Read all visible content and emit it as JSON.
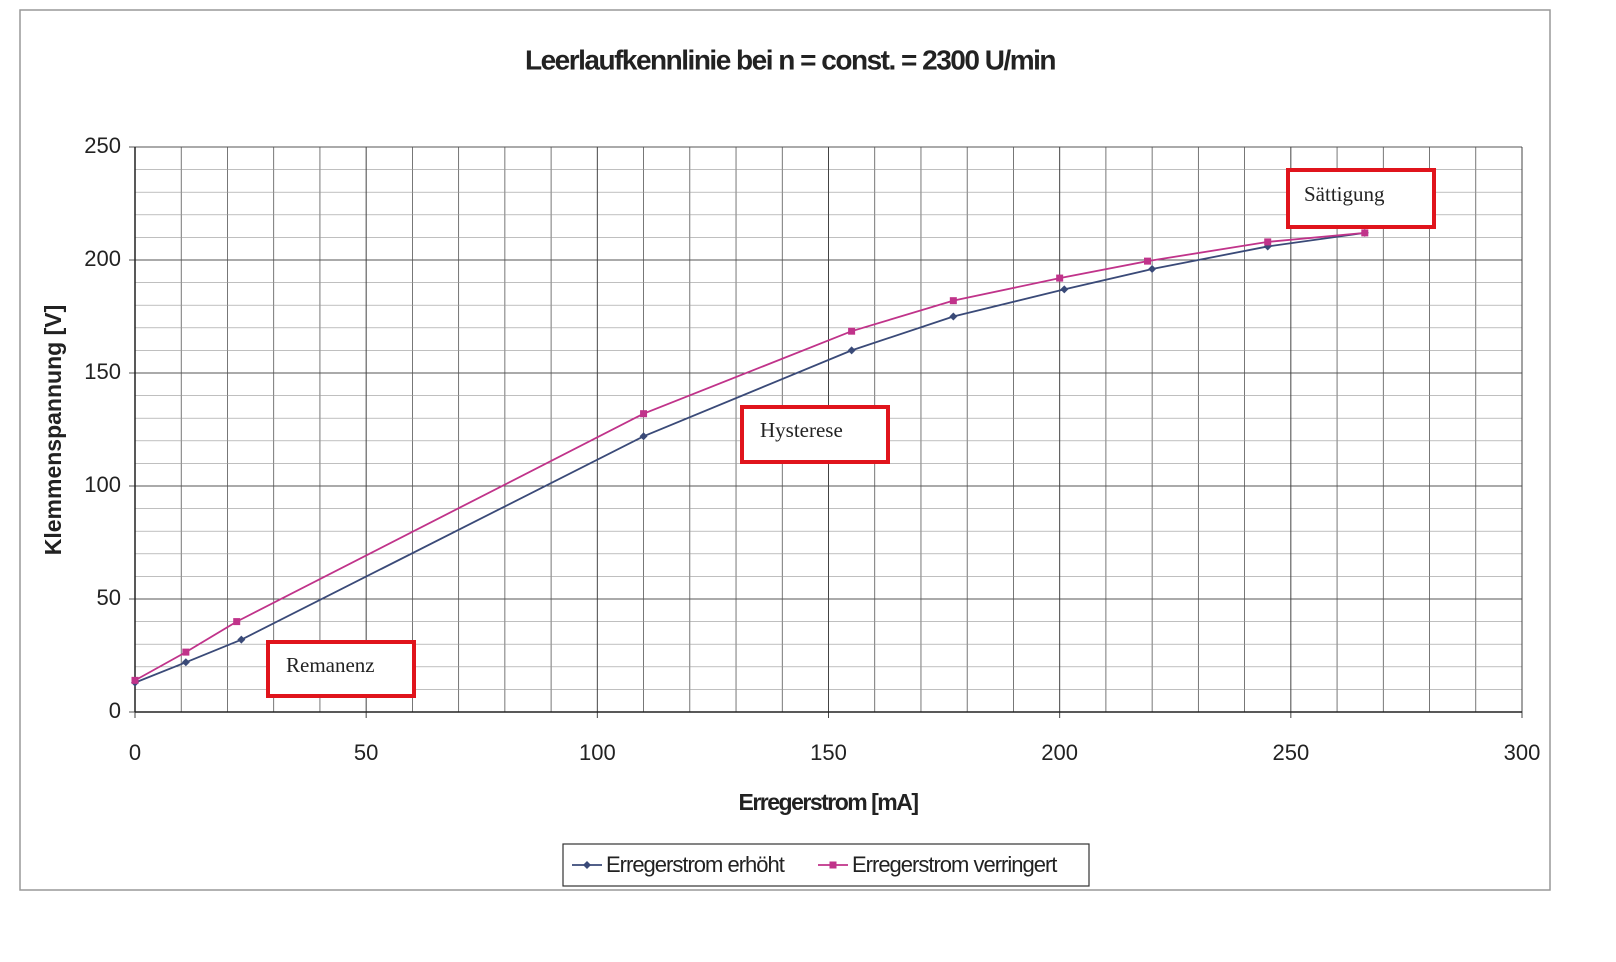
{
  "chart_data": {
    "type": "line",
    "title": "Leerlaufkennlinie bei n = const. = 2300 U/min",
    "xlabel": "Erregerstrom [mA]",
    "ylabel": "Klemmenspannung [V]",
    "series": [
      {
        "name": "Erregerstrom erhöht",
        "color": "#3a4a78",
        "marker": "diamond",
        "x": [
          0,
          11,
          23,
          110,
          155,
          177,
          201,
          220,
          245,
          266
        ],
        "values": [
          13,
          22,
          32,
          122,
          160,
          175,
          187,
          196,
          206,
          212
        ]
      },
      {
        "name": "Erregerstrom verringert",
        "color": "#c0338a",
        "marker": "square",
        "x": [
          0,
          11,
          22,
          110,
          155,
          177,
          200,
          219,
          245,
          266
        ],
        "values": [
          14,
          26.5,
          40,
          132,
          168.5,
          182,
          192,
          199.5,
          208,
          212
        ]
      }
    ],
    "xlim": [
      0,
      300
    ],
    "ylim": [
      0,
      250
    ],
    "xticks": [
      0,
      50,
      100,
      150,
      200,
      250,
      300
    ],
    "yticks": [
      0,
      50,
      100,
      150,
      200,
      250
    ],
    "minor_xticks": [
      10,
      20,
      30,
      40,
      60,
      70,
      80,
      90,
      110,
      120,
      130,
      140,
      160,
      170,
      180,
      190,
      210,
      220,
      230,
      240,
      260,
      270,
      280,
      290
    ],
    "minor_yticks": [
      10,
      20,
      30,
      40,
      60,
      70,
      80,
      90,
      110,
      120,
      130,
      140,
      160,
      170,
      180,
      190,
      210,
      220,
      230,
      240
    ],
    "grid": true,
    "legend": "bottom",
    "annotations": [
      "Remanenz",
      "Hysterese",
      "Sättigung"
    ]
  }
}
